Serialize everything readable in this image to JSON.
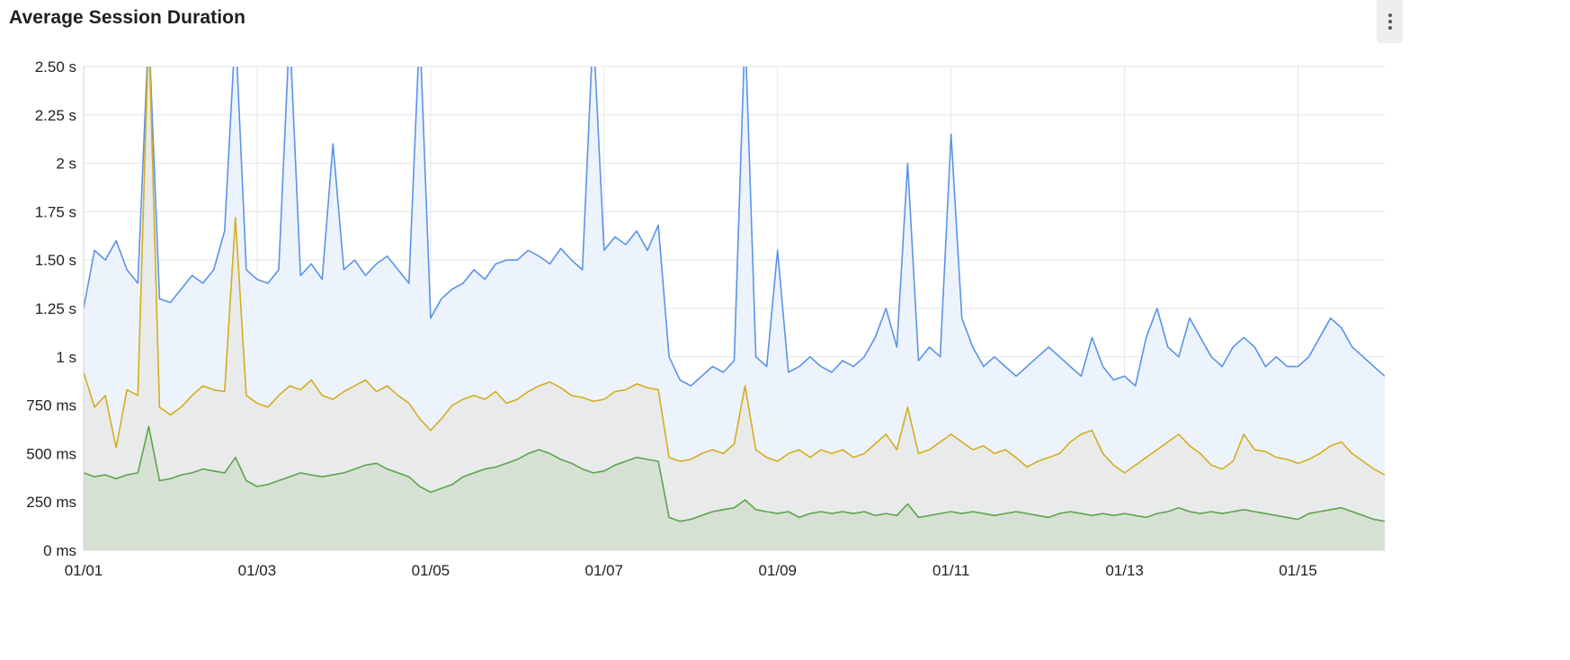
{
  "header": {
    "title": "Average Session Duration",
    "menu_icon": "more-vertical-icon"
  },
  "chart_data": {
    "type": "area",
    "title": "Average Session Duration",
    "xlabel": "",
    "ylabel": "",
    "x_range": [
      "01/01 00:00",
      "01/16 00:00"
    ],
    "x_ticks": [
      "01/01",
      "01/03",
      "01/05",
      "01/07",
      "01/09",
      "01/11",
      "01/13",
      "01/15"
    ],
    "y_unit": "ms",
    "ylim": [
      0,
      2500
    ],
    "y_ticks": [
      {
        "value": 0,
        "label": "0 ms"
      },
      {
        "value": 250,
        "label": "250 ms"
      },
      {
        "value": 500,
        "label": "500 ms"
      },
      {
        "value": 750,
        "label": "750 ms"
      },
      {
        "value": 1000,
        "label": "1 s"
      },
      {
        "value": 1250,
        "label": "1.25 s"
      },
      {
        "value": 1500,
        "label": "1.50 s"
      },
      {
        "value": 1750,
        "label": "1.75 s"
      },
      {
        "value": 2000,
        "label": "2 s"
      },
      {
        "value": 2250,
        "label": "2.25 s"
      },
      {
        "value": 2500,
        "label": "2.50 s"
      }
    ],
    "grid": true,
    "legend": "none",
    "series": [
      {
        "color": "#5b93e8",
        "fill": "#edf3fd",
        "values": [
          1250,
          1550,
          1500,
          1600,
          1450,
          1380,
          2700,
          1300,
          1280,
          1350,
          1420,
          1380,
          1450,
          1650,
          2700,
          1450,
          1400,
          1380,
          1450,
          2700,
          1420,
          1480,
          1400,
          2100,
          1450,
          1500,
          1420,
          1480,
          1520,
          1450,
          1380,
          2700,
          1200,
          1300,
          1350,
          1380,
          1450,
          1400,
          1480,
          1500,
          1500,
          1550,
          1520,
          1480,
          1560,
          1500,
          1450,
          2700,
          1550,
          1620,
          1580,
          1650,
          1550,
          1680,
          1000,
          880,
          850,
          900,
          950,
          920,
          980,
          2700,
          1000,
          950,
          1550,
          920,
          950,
          1000,
          950,
          920,
          980,
          950,
          1000,
          1100,
          1250,
          1050,
          2000,
          980,
          1050,
          1000,
          2150,
          1200,
          1050,
          950,
          1000,
          950,
          900,
          950,
          1000,
          1050,
          1000,
          950,
          900,
          1100,
          950,
          880,
          900,
          850,
          1100,
          1250,
          1050,
          1000,
          1200,
          1100,
          1000,
          950,
          1050,
          1100,
          1050,
          950,
          1000,
          950,
          950,
          1000,
          1100,
          1200,
          1150,
          1050,
          1000,
          950,
          900
        ]
      },
      {
        "color": "#d4ad1e",
        "fill": "rgba(212,200,150,0.18)",
        "values": [
          920,
          740,
          800,
          530,
          830,
          800,
          2700,
          740,
          700,
          740,
          800,
          850,
          830,
          820,
          1720,
          800,
          760,
          740,
          800,
          850,
          830,
          880,
          800,
          780,
          820,
          850,
          880,
          820,
          850,
          800,
          760,
          680,
          620,
          680,
          750,
          780,
          800,
          780,
          820,
          760,
          780,
          820,
          850,
          870,
          840,
          800,
          790,
          770,
          780,
          820,
          830,
          860,
          840,
          830,
          480,
          460,
          470,
          500,
          520,
          500,
          550,
          850,
          520,
          480,
          460,
          500,
          520,
          480,
          520,
          500,
          520,
          480,
          500,
          550,
          600,
          520,
          740,
          500,
          520,
          560,
          600,
          560,
          520,
          540,
          500,
          520,
          480,
          430,
          460,
          480,
          500,
          560,
          600,
          620,
          500,
          440,
          400,
          440,
          480,
          520,
          560,
          600,
          540,
          500,
          440,
          420,
          460,
          600,
          520,
          510,
          480,
          470,
          450,
          470,
          500,
          540,
          560,
          500,
          460,
          420,
          390
        ]
      },
      {
        "color": "#5fa24f",
        "fill": "rgba(150,190,130,0.22)",
        "values": [
          400,
          380,
          390,
          370,
          390,
          400,
          640,
          360,
          370,
          390,
          400,
          420,
          410,
          400,
          480,
          360,
          330,
          340,
          360,
          380,
          400,
          390,
          380,
          390,
          400,
          420,
          440,
          450,
          420,
          400,
          380,
          330,
          300,
          320,
          340,
          380,
          400,
          420,
          430,
          450,
          470,
          500,
          520,
          500,
          470,
          450,
          420,
          400,
          410,
          440,
          460,
          480,
          470,
          460,
          170,
          150,
          160,
          180,
          200,
          210,
          220,
          260,
          210,
          200,
          190,
          200,
          170,
          190,
          200,
          190,
          200,
          190,
          200,
          180,
          190,
          180,
          240,
          170,
          180,
          190,
          200,
          190,
          200,
          190,
          180,
          190,
          200,
          190,
          180,
          170,
          190,
          200,
          190,
          180,
          190,
          180,
          190,
          180,
          170,
          190,
          200,
          220,
          200,
          190,
          200,
          190,
          200,
          210,
          200,
          190,
          180,
          170,
          160,
          190,
          200,
          210,
          220,
          200,
          180,
          160,
          150
        ]
      }
    ]
  }
}
